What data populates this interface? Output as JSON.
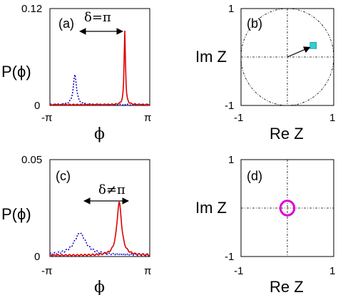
{
  "chart_data": [
    {
      "id": "a",
      "type": "line",
      "panel_label": "(a)",
      "xlabel": "ϕ",
      "ylabel": "P(ϕ)",
      "xticks": [
        "-π",
        "π"
      ],
      "yticks": [
        "0",
        "0.12"
      ],
      "xlim": [
        -3.1416,
        3.1416
      ],
      "ylim": [
        0,
        0.12
      ],
      "annotation": "δ=π",
      "series": [
        {
          "color": "#0000cc",
          "style": "dotted",
          "peak_x": -1.57,
          "peak_y": 0.038,
          "width": 0.12,
          "base": 0.001
        },
        {
          "color": "#dd0000",
          "style": "solid",
          "peak_x": 1.57,
          "peak_y": 0.093,
          "width": 0.05,
          "base": 0.001
        }
      ]
    },
    {
      "id": "b",
      "type": "scatter",
      "panel_label": "(b)",
      "xlabel": "Re Z",
      "ylabel": "Im Z",
      "xticks": [
        "-1",
        "1"
      ],
      "yticks": [
        "-1",
        "1"
      ],
      "xlim": [
        -1,
        1
      ],
      "ylim": [
        -1,
        1
      ],
      "unit_circle": true,
      "arrow_to": [
        0.55,
        0.23
      ],
      "marker_color": "#33cccc"
    },
    {
      "id": "c",
      "type": "line",
      "panel_label": "(c)",
      "xlabel": "ϕ",
      "ylabel": "P(ϕ)",
      "xticks": [
        "-π",
        "π"
      ],
      "yticks": [
        "0",
        "0.05"
      ],
      "xlim": [
        -3.1416,
        3.1416
      ],
      "ylim": [
        0,
        0.05
      ],
      "annotation": "δ≠π",
      "series": [
        {
          "color": "#0000cc",
          "style": "dotted",
          "peak_x": -1.25,
          "peak_y": 0.012,
          "width": 0.45,
          "base": 0.0008
        },
        {
          "color": "#dd0000",
          "style": "solid",
          "peak_x": 1.22,
          "peak_y": 0.028,
          "width": 0.18,
          "base": 0.0006
        }
      ]
    },
    {
      "id": "d",
      "type": "scatter",
      "panel_label": "(d)",
      "xlabel": "Re Z",
      "ylabel": "Im Z",
      "xticks": [
        "-1",
        "1"
      ],
      "yticks": [
        "-1",
        "1"
      ],
      "xlim": [
        -1,
        1
      ],
      "ylim": [
        -1,
        1
      ],
      "small_circle": {
        "cx": 0.0,
        "cy": 0.0,
        "r": 0.15
      },
      "marker_color": "#dd00dd"
    }
  ]
}
